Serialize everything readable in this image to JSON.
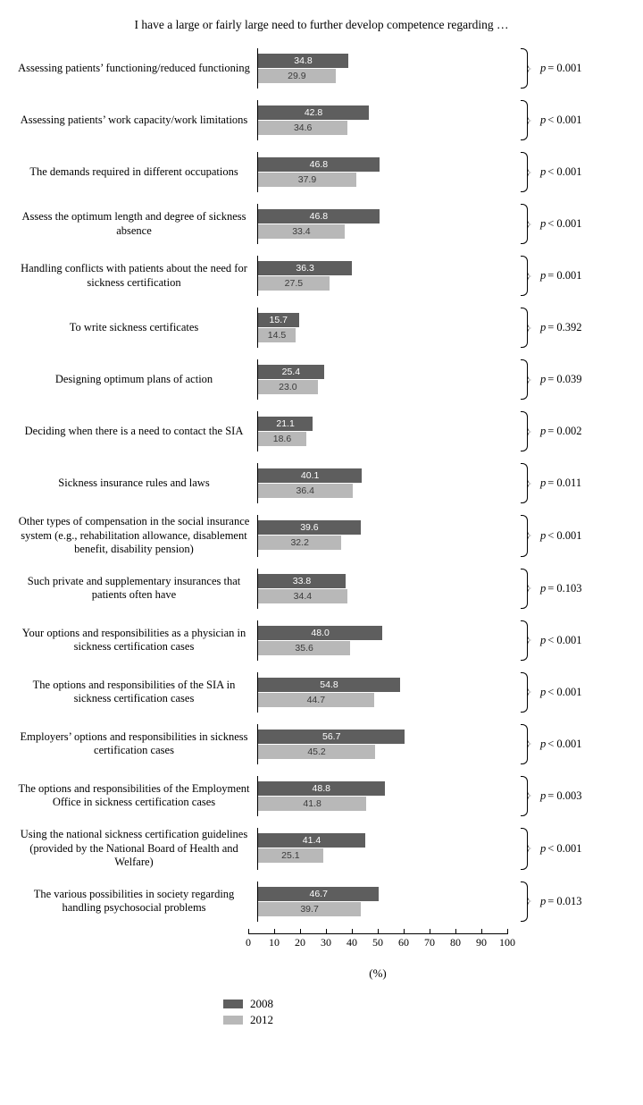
{
  "title": "I have a large or fairly large need to further develop competence regarding …",
  "xlabel": "(%)",
  "xmax_pct_width": 290,
  "xlim": [
    0,
    100
  ],
  "xtick_step": 10,
  "legend": [
    {
      "label": "2008",
      "color": "#5e5e5e"
    },
    {
      "label": "2012",
      "color": "#b8b8b8"
    }
  ],
  "colors": {
    "bar2008": "#5e5e5e",
    "bar2012": "#b8b8b8",
    "val2008": "#ffffff",
    "val2012": "#3a3a3a",
    "axis": "#000000",
    "bg": "#ffffff"
  },
  "rows": [
    {
      "label": "Assessing patients’ functioning/reduced functioning",
      "v2008": 34.8,
      "v2012": 29.9,
      "p_op": "=",
      "p_val": "0.001"
    },
    {
      "label": "Assessing patients’ work capacity/work limitations",
      "v2008": 42.8,
      "v2012": 34.6,
      "p_op": "<",
      "p_val": "0.001"
    },
    {
      "label": "The demands required in different occupations",
      "v2008": 46.8,
      "v2012": 37.9,
      "p_op": "<",
      "p_val": "0.001"
    },
    {
      "label": "Assess the optimum length and degree of sickness absence",
      "v2008": 46.8,
      "v2012": 33.4,
      "p_op": "<",
      "p_val": "0.001"
    },
    {
      "label": "Handling conflicts with patients about the need for sickness certification",
      "v2008": 36.3,
      "v2012": 27.5,
      "p_op": "=",
      "p_val": "0.001"
    },
    {
      "label": "To write sickness certificates",
      "v2008": 15.7,
      "v2012": 14.5,
      "p_op": "=",
      "p_val": "0.392"
    },
    {
      "label": "Designing optimum plans of action",
      "v2008": 25.4,
      "v2012": 23.0,
      "p_op": "=",
      "p_val": "0.039"
    },
    {
      "label": "Deciding when there is a need to contact the SIA",
      "v2008": 21.1,
      "v2012": 18.6,
      "p_op": "=",
      "p_val": "0.002"
    },
    {
      "label": "Sickness insurance rules and laws",
      "v2008": 40.1,
      "v2012": 36.4,
      "p_op": "=",
      "p_val": "0.011"
    },
    {
      "label": "Other types of compensation in the social insurance system (e.g., rehabilitation allowance, disablement benefit, disability pension)",
      "v2008": 39.6,
      "v2012": 32.2,
      "p_op": "<",
      "p_val": "0.001"
    },
    {
      "label": "Such private and supplementary insurances that patients often have",
      "v2008": 33.8,
      "v2012": 34.4,
      "p_op": "=",
      "p_val": "0.103"
    },
    {
      "label": "Your options and responsibilities as a physician in sickness certification cases",
      "v2008": 48.0,
      "v2012": 35.6,
      "p_op": "<",
      "p_val": "0.001"
    },
    {
      "label": "The options and responsibilities of the SIA in sickness certification cases",
      "v2008": 54.8,
      "v2012": 44.7,
      "p_op": "<",
      "p_val": "0.001"
    },
    {
      "label": "Employers’ options and responsibilities in sickness certification cases",
      "v2008": 56.7,
      "v2012": 45.2,
      "p_op": "<",
      "p_val": "0.001"
    },
    {
      "label": "The options and responsibilities of the Employment Office in sickness certification cases",
      "v2008": 48.8,
      "v2012": 41.8,
      "p_op": "=",
      "p_val": "0.003"
    },
    {
      "label": "Using the national sickness certification guidelines (provided by the National Board of Health and Welfare)",
      "v2008": 41.4,
      "v2012": 25.1,
      "p_op": "<",
      "p_val": "0.001"
    },
    {
      "label": "The various possibilities in society regarding handling psychosocial problems",
      "v2008": 46.7,
      "v2012": 39.7,
      "p_op": "=",
      "p_val": "0.013"
    }
  ]
}
